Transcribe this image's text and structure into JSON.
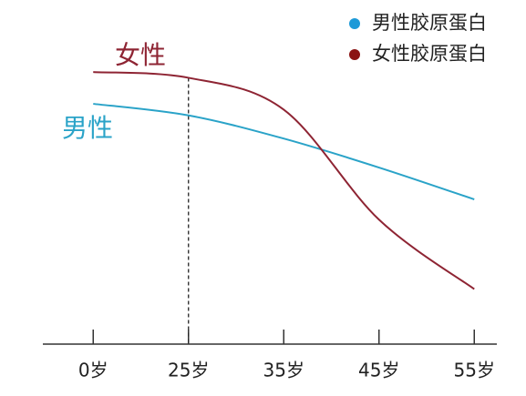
{
  "chart_data": {
    "type": "line",
    "categories": [
      "0岁",
      "25岁",
      "35岁",
      "45岁",
      "55岁"
    ],
    "series": [
      {
        "name": "男性胶原蛋白",
        "color": "#2aa3c8",
        "legend_color": "#1e9ad8",
        "label": "男性",
        "values": [
          83,
          79,
          71,
          61,
          50
        ]
      },
      {
        "name": "女性胶原蛋白",
        "color": "#8e2433",
        "legend_color": "#8b1414",
        "label": "女性",
        "values": [
          94,
          92,
          81,
          43,
          19
        ]
      }
    ],
    "ylim": [
      0,
      100
    ],
    "highlight_index": 1,
    "legend": "top-right"
  }
}
